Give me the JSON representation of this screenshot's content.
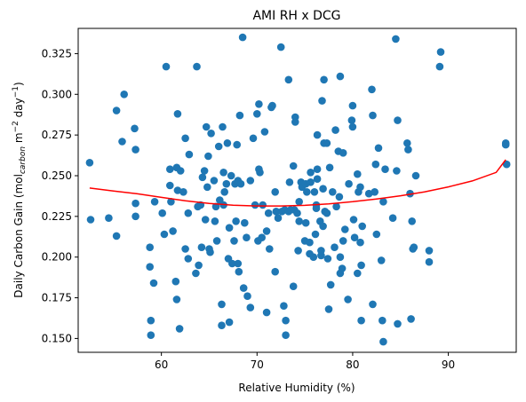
{
  "chart_data": {
    "type": "scatter",
    "title": "AMI RH x DCG",
    "xlabel": "Relative Humidity (%)",
    "ylabel_main": "Daily Carbon Gain (mol",
    "ylabel_sub": "carbon",
    "ylabel_mid": " m",
    "ylabel_sup1": "−2",
    "ylabel_mid2": " day",
    "ylabel_sup2": "−1",
    "ylabel_end": ")",
    "xlim": [
      51.3,
      97.1
    ],
    "ylim": [
      0.1415,
      0.3405
    ],
    "xticks": [
      60,
      70,
      80,
      90
    ],
    "xtick_labels": [
      "60",
      "70",
      "80",
      "90"
    ],
    "yticks": [
      0.15,
      0.175,
      0.2,
      0.225,
      0.25,
      0.275,
      0.3,
      0.325
    ],
    "ytick_labels": [
      "0.150",
      "0.175",
      "0.200",
      "0.225",
      "0.250",
      "0.275",
      "0.300",
      "0.325"
    ],
    "grid": false,
    "series": [
      {
        "kind": "points",
        "color": "#1f77b4",
        "points": [
          [
            52.5,
            0.258
          ],
          [
            52.6,
            0.223
          ],
          [
            54.5,
            0.224
          ],
          [
            55.3,
            0.213
          ],
          [
            55.3,
            0.29
          ],
          [
            55.9,
            0.271
          ],
          [
            56.1,
            0.3
          ],
          [
            57.2,
            0.279
          ],
          [
            57.3,
            0.266
          ],
          [
            57.3,
            0.233
          ],
          [
            57.3,
            0.225
          ],
          [
            58.8,
            0.206
          ],
          [
            58.8,
            0.194
          ],
          [
            58.9,
            0.161
          ],
          [
            58.9,
            0.152
          ],
          [
            59.2,
            0.184
          ],
          [
            59.3,
            0.234
          ],
          [
            60.1,
            0.227
          ],
          [
            60.3,
            0.214
          ],
          [
            60.5,
            0.317
          ],
          [
            60.9,
            0.244
          ],
          [
            60.9,
            0.254
          ],
          [
            61.0,
            0.234
          ],
          [
            61.2,
            0.216
          ],
          [
            61.5,
            0.185
          ],
          [
            61.6,
            0.174
          ],
          [
            61.6,
            0.255
          ],
          [
            61.7,
            0.241
          ],
          [
            61.7,
            0.288
          ],
          [
            61.9,
            0.156
          ],
          [
            62.0,
            0.253
          ],
          [
            62.3,
            0.24
          ],
          [
            62.5,
            0.273
          ],
          [
            62.5,
            0.205
          ],
          [
            62.8,
            0.227
          ],
          [
            62.8,
            0.199
          ],
          [
            62.9,
            0.263
          ],
          [
            63.6,
            0.19
          ],
          [
            63.7,
            0.317
          ],
          [
            63.8,
            0.231
          ],
          [
            63.9,
            0.195
          ],
          [
            64.1,
            0.232
          ],
          [
            64.2,
            0.206
          ],
          [
            64.3,
            0.249
          ],
          [
            64.5,
            0.253
          ],
          [
            64.6,
            0.223
          ],
          [
            64.7,
            0.28
          ],
          [
            64.8,
            0.243
          ],
          [
            64.9,
            0.262
          ],
          [
            65.0,
            0.205
          ],
          [
            65.1,
            0.203
          ],
          [
            65.2,
            0.276
          ],
          [
            65.5,
            0.247
          ],
          [
            65.6,
            0.222
          ],
          [
            65.7,
            0.231
          ],
          [
            65.8,
            0.21
          ],
          [
            66.0,
            0.268
          ],
          [
            66.1,
            0.235
          ],
          [
            66.3,
            0.171
          ],
          [
            66.3,
            0.158
          ],
          [
            66.4,
            0.28
          ],
          [
            66.5,
            0.252
          ],
          [
            66.5,
            0.232
          ],
          [
            66.6,
            0.24
          ],
          [
            66.8,
            0.245
          ],
          [
            66.9,
            0.27
          ],
          [
            67.0,
            0.199
          ],
          [
            67.1,
            0.16
          ],
          [
            67.1,
            0.218
          ],
          [
            67.3,
            0.25
          ],
          [
            67.4,
            0.196
          ],
          [
            67.6,
            0.21
          ],
          [
            67.7,
            0.245
          ],
          [
            67.8,
            0.222
          ],
          [
            67.9,
            0.269
          ],
          [
            68.0,
            0.247
          ],
          [
            68.0,
            0.196
          ],
          [
            68.1,
            0.191
          ],
          [
            68.2,
            0.287
          ],
          [
            68.3,
            0.245
          ],
          [
            68.5,
            0.335
          ],
          [
            68.6,
            0.181
          ],
          [
            68.7,
            0.221
          ],
          [
            68.9,
            0.212
          ],
          [
            69.0,
            0.176
          ],
          [
            69.3,
            0.247
          ],
          [
            69.3,
            0.169
          ],
          [
            69.6,
            0.273
          ],
          [
            69.8,
            0.232
          ],
          [
            70.0,
            0.288
          ],
          [
            70.1,
            0.21
          ],
          [
            70.2,
            0.294
          ],
          [
            70.2,
            0.254
          ],
          [
            70.3,
            0.252
          ],
          [
            70.5,
            0.212
          ],
          [
            70.6,
            0.232
          ],
          [
            70.8,
            0.277
          ],
          [
            71.0,
            0.166
          ],
          [
            71.0,
            0.216
          ],
          [
            71.2,
            0.227
          ],
          [
            71.3,
            0.205
          ],
          [
            71.5,
            0.292
          ],
          [
            71.6,
            0.293
          ],
          [
            71.9,
            0.24
          ],
          [
            71.9,
            0.191
          ],
          [
            72.0,
            0.228
          ],
          [
            72.2,
            0.224
          ],
          [
            72.5,
            0.329
          ],
          [
            72.6,
            0.228
          ],
          [
            72.8,
            0.17
          ],
          [
            72.9,
            0.229
          ],
          [
            73.0,
            0.161
          ],
          [
            73.0,
            0.152
          ],
          [
            73.3,
            0.309
          ],
          [
            73.3,
            0.228
          ],
          [
            73.4,
            0.246
          ],
          [
            73.5,
            0.229
          ],
          [
            73.8,
            0.182
          ],
          [
            73.8,
            0.256
          ],
          [
            73.9,
            0.229
          ],
          [
            74.0,
            0.286
          ],
          [
            74.0,
            0.283
          ],
          [
            74.2,
            0.227
          ],
          [
            74.3,
            0.204
          ],
          [
            74.4,
            0.234
          ],
          [
            74.4,
            0.222
          ],
          [
            74.6,
            0.246
          ],
          [
            74.7,
            0.243
          ],
          [
            75.0,
            0.21
          ],
          [
            75.1,
            0.221
          ],
          [
            75.1,
            0.245
          ],
          [
            75.2,
            0.24
          ],
          [
            75.5,
            0.209
          ],
          [
            75.5,
            0.202
          ],
          [
            75.6,
            0.246
          ],
          [
            75.6,
            0.252
          ],
          [
            75.9,
            0.2
          ],
          [
            76.0,
            0.24
          ],
          [
            76.1,
            0.214
          ],
          [
            76.2,
            0.23
          ],
          [
            76.2,
            0.232
          ],
          [
            76.3,
            0.248
          ],
          [
            76.3,
            0.254
          ],
          [
            76.3,
            0.275
          ],
          [
            76.6,
            0.222
          ],
          [
            76.7,
            0.201
          ],
          [
            76.7,
            0.204
          ],
          [
            76.8,
            0.296
          ],
          [
            76.9,
            0.242
          ],
          [
            76.9,
            0.219
          ],
          [
            77.0,
            0.309
          ],
          [
            77.0,
            0.27
          ],
          [
            77.1,
            0.228
          ],
          [
            77.3,
            0.27
          ],
          [
            77.3,
            0.227
          ],
          [
            77.4,
            0.199
          ],
          [
            77.5,
            0.168
          ],
          [
            77.6,
            0.255
          ],
          [
            77.7,
            0.183
          ],
          [
            77.9,
            0.24
          ],
          [
            78.1,
            0.206
          ],
          [
            78.2,
            0.278
          ],
          [
            78.3,
            0.231
          ],
          [
            78.5,
            0.265
          ],
          [
            78.6,
            0.237
          ],
          [
            78.7,
            0.311
          ],
          [
            78.7,
            0.19
          ],
          [
            78.7,
            0.2
          ],
          [
            78.9,
            0.193
          ],
          [
            79.0,
            0.264
          ],
          [
            79.0,
            0.21
          ],
          [
            79.2,
            0.217
          ],
          [
            79.5,
            0.174
          ],
          [
            79.6,
            0.245
          ],
          [
            79.9,
            0.284
          ],
          [
            80.0,
            0.293
          ],
          [
            80.0,
            0.28
          ],
          [
            80.1,
            0.223
          ],
          [
            80.2,
            0.212
          ],
          [
            80.5,
            0.251
          ],
          [
            80.5,
            0.19
          ],
          [
            80.6,
            0.24
          ],
          [
            80.8,
            0.243
          ],
          [
            80.8,
            0.209
          ],
          [
            80.9,
            0.161
          ],
          [
            80.9,
            0.195
          ],
          [
            81.0,
            0.219
          ],
          [
            81.7,
            0.239
          ],
          [
            82.0,
            0.303
          ],
          [
            82.1,
            0.287
          ],
          [
            82.1,
            0.171
          ],
          [
            82.3,
            0.24
          ],
          [
            82.4,
            0.257
          ],
          [
            82.5,
            0.214
          ],
          [
            82.7,
            0.267
          ],
          [
            83.0,
            0.198
          ],
          [
            83.1,
            0.161
          ],
          [
            83.2,
            0.148
          ],
          [
            83.2,
            0.234
          ],
          [
            83.4,
            0.254
          ],
          [
            84.2,
            0.224
          ],
          [
            84.5,
            0.334
          ],
          [
            84.6,
            0.253
          ],
          [
            84.7,
            0.159
          ],
          [
            84.7,
            0.284
          ],
          [
            85.7,
            0.27
          ],
          [
            85.8,
            0.266
          ],
          [
            86.0,
            0.239
          ],
          [
            86.1,
            0.162
          ],
          [
            86.2,
            0.222
          ],
          [
            86.3,
            0.205
          ],
          [
            86.4,
            0.206
          ],
          [
            86.6,
            0.25
          ],
          [
            88.0,
            0.197
          ],
          [
            88.0,
            0.204
          ],
          [
            89.1,
            0.317
          ],
          [
            89.2,
            0.326
          ],
          [
            96.0,
            0.27
          ],
          [
            96.0,
            0.269
          ],
          [
            96.1,
            0.257
          ]
        ]
      },
      {
        "kind": "fit-line",
        "color": "#ff0000",
        "x": [
          52.5,
          55,
          57.5,
          60,
          62.5,
          65,
          67.5,
          70,
          72.5,
          75,
          77.5,
          80,
          82.5,
          85,
          87.5,
          90,
          92.5,
          95,
          96
        ],
        "y": [
          0.2424,
          0.2406,
          0.2389,
          0.2367,
          0.2346,
          0.233,
          0.2319,
          0.2314,
          0.2314,
          0.2318,
          0.2327,
          0.234,
          0.2357,
          0.2377,
          0.2401,
          0.2431,
          0.2468,
          0.252,
          0.2598
        ]
      }
    ]
  }
}
